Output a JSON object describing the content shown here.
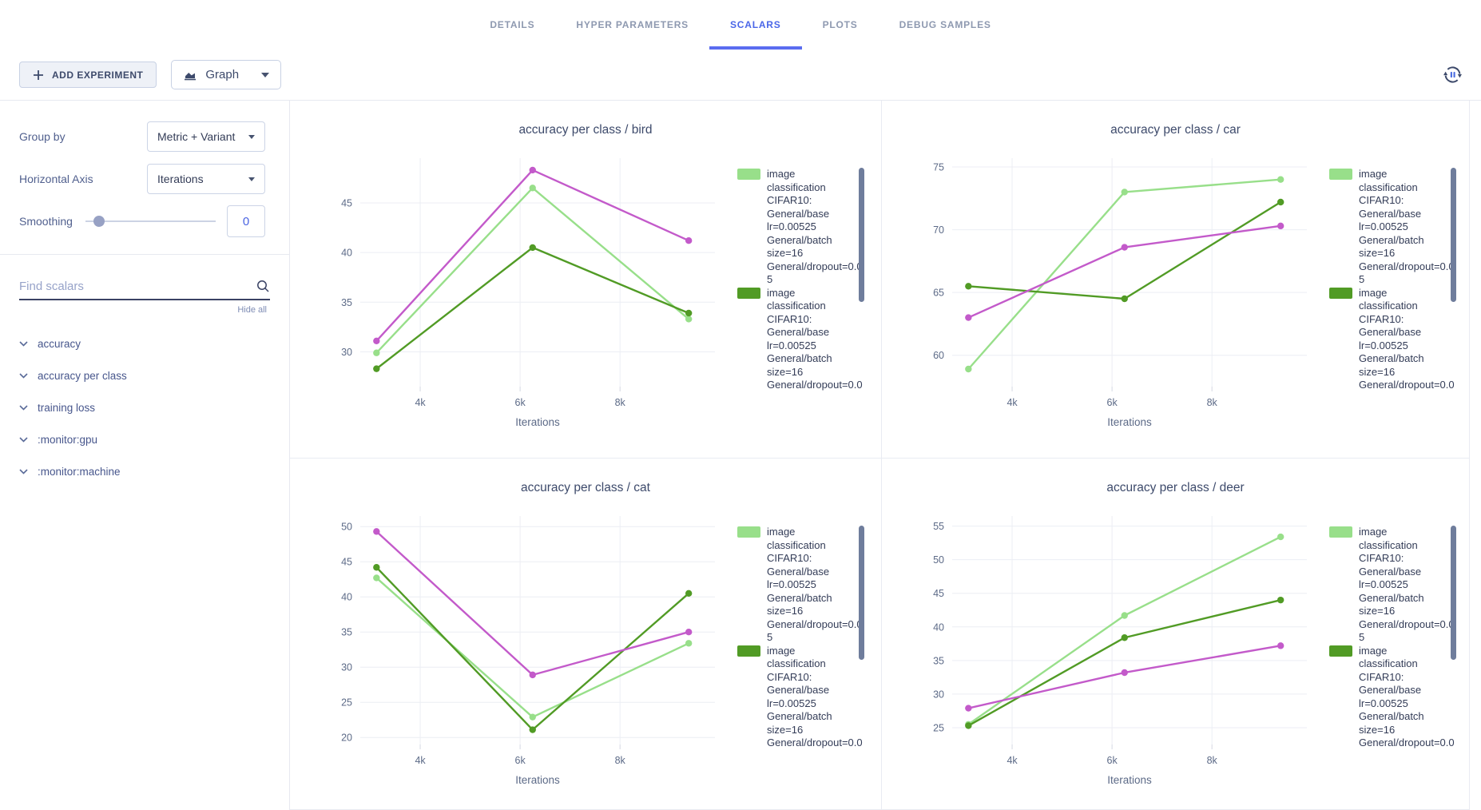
{
  "tabs": {
    "items": [
      {
        "label": "DETAILS",
        "active": false
      },
      {
        "label": "HYPER PARAMETERS",
        "active": false
      },
      {
        "label": "SCALARS",
        "active": true
      },
      {
        "label": "PLOTS",
        "active": false
      },
      {
        "label": "DEBUG SAMPLES",
        "active": false
      }
    ]
  },
  "toolbar": {
    "add_experiment_label": "ADD EXPERIMENT",
    "graph_label": "Graph",
    "refresh_icon": "auto-refresh-icon"
  },
  "sidebar": {
    "group_by_label": "Group by",
    "group_by_value": "Metric + Variant",
    "horizontal_axis_label": "Horizontal Axis",
    "horizontal_axis_value": "Iterations",
    "smoothing_label": "Smoothing",
    "smoothing_value": "0",
    "find_scalars_placeholder": "Find scalars",
    "hide_all_label": "Hide all",
    "metrics": [
      {
        "label": "accuracy"
      },
      {
        "label": "accuracy per class"
      },
      {
        "label": "training loss"
      },
      {
        "label": ":monitor:gpu"
      },
      {
        "label": ":monitor:machine"
      }
    ]
  },
  "colors": {
    "accent_blue": "#4a66e8",
    "series_light_green": "#98DF8A",
    "series_dark_green": "#519B25",
    "series_magenta": "#C35ACA",
    "legend_scrollbar": "#6f7d9c"
  },
  "chart_data": [
    {
      "type": "line",
      "title": "accuracy per class / bird",
      "xlabel": "Iterations",
      "x": [
        3125,
        6250,
        9375
      ],
      "xlim": [
        2800,
        9900
      ],
      "xtick_values": [
        4000,
        6000,
        8000
      ],
      "xtick_labels": [
        "4k",
        "6k",
        "8k"
      ],
      "ylim": [
        26.5,
        49.5
      ],
      "yticks": [
        30,
        35,
        40,
        45
      ],
      "grid": true,
      "legend_position": "right",
      "series": [
        {
          "name": "image classification CIFAR10: General/base lr=0.00525 General/batch size=16 General/dropout=0.05",
          "color": "#98DF8A",
          "values": [
            29.9,
            46.5,
            33.3
          ]
        },
        {
          "name": "image classification CIFAR10: General/base lr=0.00525 General/batch size=16 General/dropout=0.0",
          "color": "#519B25",
          "values": [
            28.3,
            40.5,
            33.9
          ]
        },
        {
          "name": null,
          "color": "#C35ACA",
          "values": [
            31.1,
            48.3,
            41.2
          ]
        }
      ]
    },
    {
      "type": "line",
      "title": "accuracy per class / car",
      "xlabel": "Iterations",
      "x": [
        3125,
        6250,
        9375
      ],
      "xlim": [
        2800,
        9900
      ],
      "xtick_values": [
        4000,
        6000,
        8000
      ],
      "xtick_labels": [
        "4k",
        "6k",
        "8k"
      ],
      "ylim": [
        57.5,
        75.7
      ],
      "yticks": [
        60,
        65,
        70,
        75
      ],
      "grid": true,
      "legend_position": "right",
      "series": [
        {
          "name": "image classification CIFAR10: General/base lr=0.00525 General/batch size=16 General/dropout=0.05",
          "color": "#98DF8A",
          "values": [
            58.9,
            73.0,
            74.0
          ]
        },
        {
          "name": "image classification CIFAR10: General/base lr=0.00525 General/batch size=16 General/dropout=0.0",
          "color": "#519B25",
          "values": [
            65.5,
            64.5,
            72.2
          ]
        },
        {
          "name": null,
          "color": "#C35ACA",
          "values": [
            63.0,
            68.6,
            70.3
          ]
        }
      ]
    },
    {
      "type": "line",
      "title": "accuracy per class / cat",
      "xlabel": "Iterations",
      "x": [
        3125,
        6250,
        9375
      ],
      "xlim": [
        2800,
        9900
      ],
      "xtick_values": [
        4000,
        6000,
        8000
      ],
      "xtick_labels": [
        "4k",
        "6k",
        "8k"
      ],
      "ylim": [
        19.0,
        51.5
      ],
      "yticks": [
        20,
        25,
        30,
        35,
        40,
        45,
        50
      ],
      "grid": true,
      "legend_position": "right",
      "series": [
        {
          "name": "image classification CIFAR10: General/base lr=0.00525 General/batch size=16 General/dropout=0.05",
          "color": "#98DF8A",
          "values": [
            42.7,
            22.9,
            33.4
          ]
        },
        {
          "name": "image classification CIFAR10: General/base lr=0.00525 General/batch size=16 General/dropout=0.0",
          "color": "#519B25",
          "values": [
            44.2,
            21.1,
            40.5
          ]
        },
        {
          "name": null,
          "color": "#C35ACA",
          "values": [
            49.3,
            28.9,
            35.0
          ]
        }
      ]
    },
    {
      "type": "line",
      "title": "accuracy per class / deer",
      "xlabel": "Iterations",
      "x": [
        3125,
        6250,
        9375
      ],
      "xlim": [
        2800,
        9900
      ],
      "xtick_values": [
        4000,
        6000,
        8000
      ],
      "xtick_labels": [
        "4k",
        "6k",
        "8k"
      ],
      "ylim": [
        22.5,
        56.5
      ],
      "yticks": [
        25,
        30,
        35,
        40,
        45,
        50,
        55
      ],
      "grid": true,
      "legend_position": "right",
      "series": [
        {
          "name": "image classification CIFAR10: General/base lr=0.00525 General/batch size=16 General/dropout=0.05",
          "color": "#98DF8A",
          "values": [
            25.5,
            41.7,
            53.4
          ]
        },
        {
          "name": "image classification CIFAR10: General/base lr=0.00525 General/batch size=16 General/dropout=0.0",
          "color": "#519B25",
          "values": [
            25.3,
            38.4,
            44.0
          ]
        },
        {
          "name": null,
          "color": "#C35ACA",
          "values": [
            27.9,
            33.2,
            37.2
          ]
        }
      ]
    }
  ]
}
